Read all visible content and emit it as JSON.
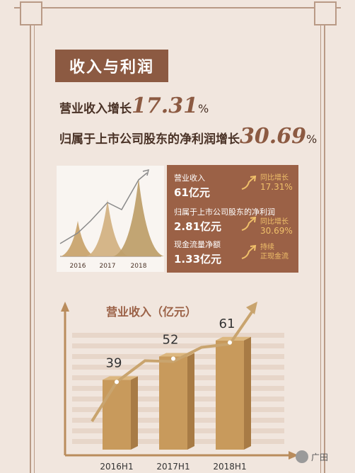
{
  "section_title": "收入与利润",
  "headline": {
    "revenue_prefix": "营业收入增长",
    "revenue_growth": "17.31",
    "revenue_unit": "%",
    "profit_prefix": "归属于上市公司股东的净利润增长",
    "profit_growth": "30.69",
    "profit_unit": "%"
  },
  "mini_chart": {
    "x_labels": [
      "2016",
      "2017",
      "2018"
    ],
    "peaks": [
      1,
      2,
      3
    ]
  },
  "info_panel": {
    "rows": [
      {
        "label": "营业收入",
        "value": "61亿元",
        "note_line1": "同比增长",
        "note_line2": "17.31%"
      },
      {
        "label": "归属于上市公司股东的净利润",
        "value": "2.81亿元",
        "note_line1": "同比增长",
        "note_line2": "30.69%"
      },
      {
        "label": "现金流量净额",
        "value": "1.33亿元",
        "note_line1": "持续",
        "note_line2": "正现金流"
      }
    ]
  },
  "chart_data": {
    "type": "bar",
    "title": "营业收入（亿元）",
    "categories": [
      "2016H1",
      "2017H1",
      "2018H1"
    ],
    "values": [
      39,
      52,
      61
    ],
    "ylim": [
      0,
      70
    ],
    "grid": true
  },
  "brand": {
    "watermark_text": "广田"
  },
  "colors": {
    "background": "#f1e6de",
    "accent": "#8c5a42",
    "gold": "#c9a46e",
    "note": "#f0c06a"
  }
}
